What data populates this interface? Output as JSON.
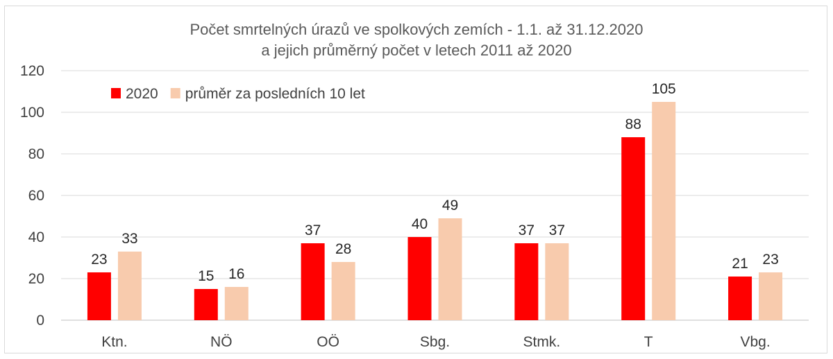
{
  "chart_data": {
    "type": "bar",
    "title": "Počet smrtelných úrazů ve spolkových zemích - 1.1. až 31.12.2020",
    "subtitle": "a jejich průměrný počet v letech 2011 až 2020",
    "categories": [
      "Ktn.",
      "NÖ",
      "OÖ",
      "Sbg.",
      "Stmk.",
      "T",
      "Vbg."
    ],
    "series": [
      {
        "name": "2020",
        "color": "#ff0000",
        "values": [
          23,
          15,
          37,
          40,
          37,
          88,
          21
        ]
      },
      {
        "name": "průměr za posledních 10 let",
        "color": "#f8cbad",
        "values": [
          33,
          16,
          28,
          49,
          37,
          105,
          23
        ]
      }
    ],
    "ylim": [
      0,
      120
    ],
    "yticks": [
      0,
      20,
      40,
      60,
      80,
      100,
      120
    ],
    "grid": true,
    "legend": "top-left",
    "data_labels": true
  }
}
